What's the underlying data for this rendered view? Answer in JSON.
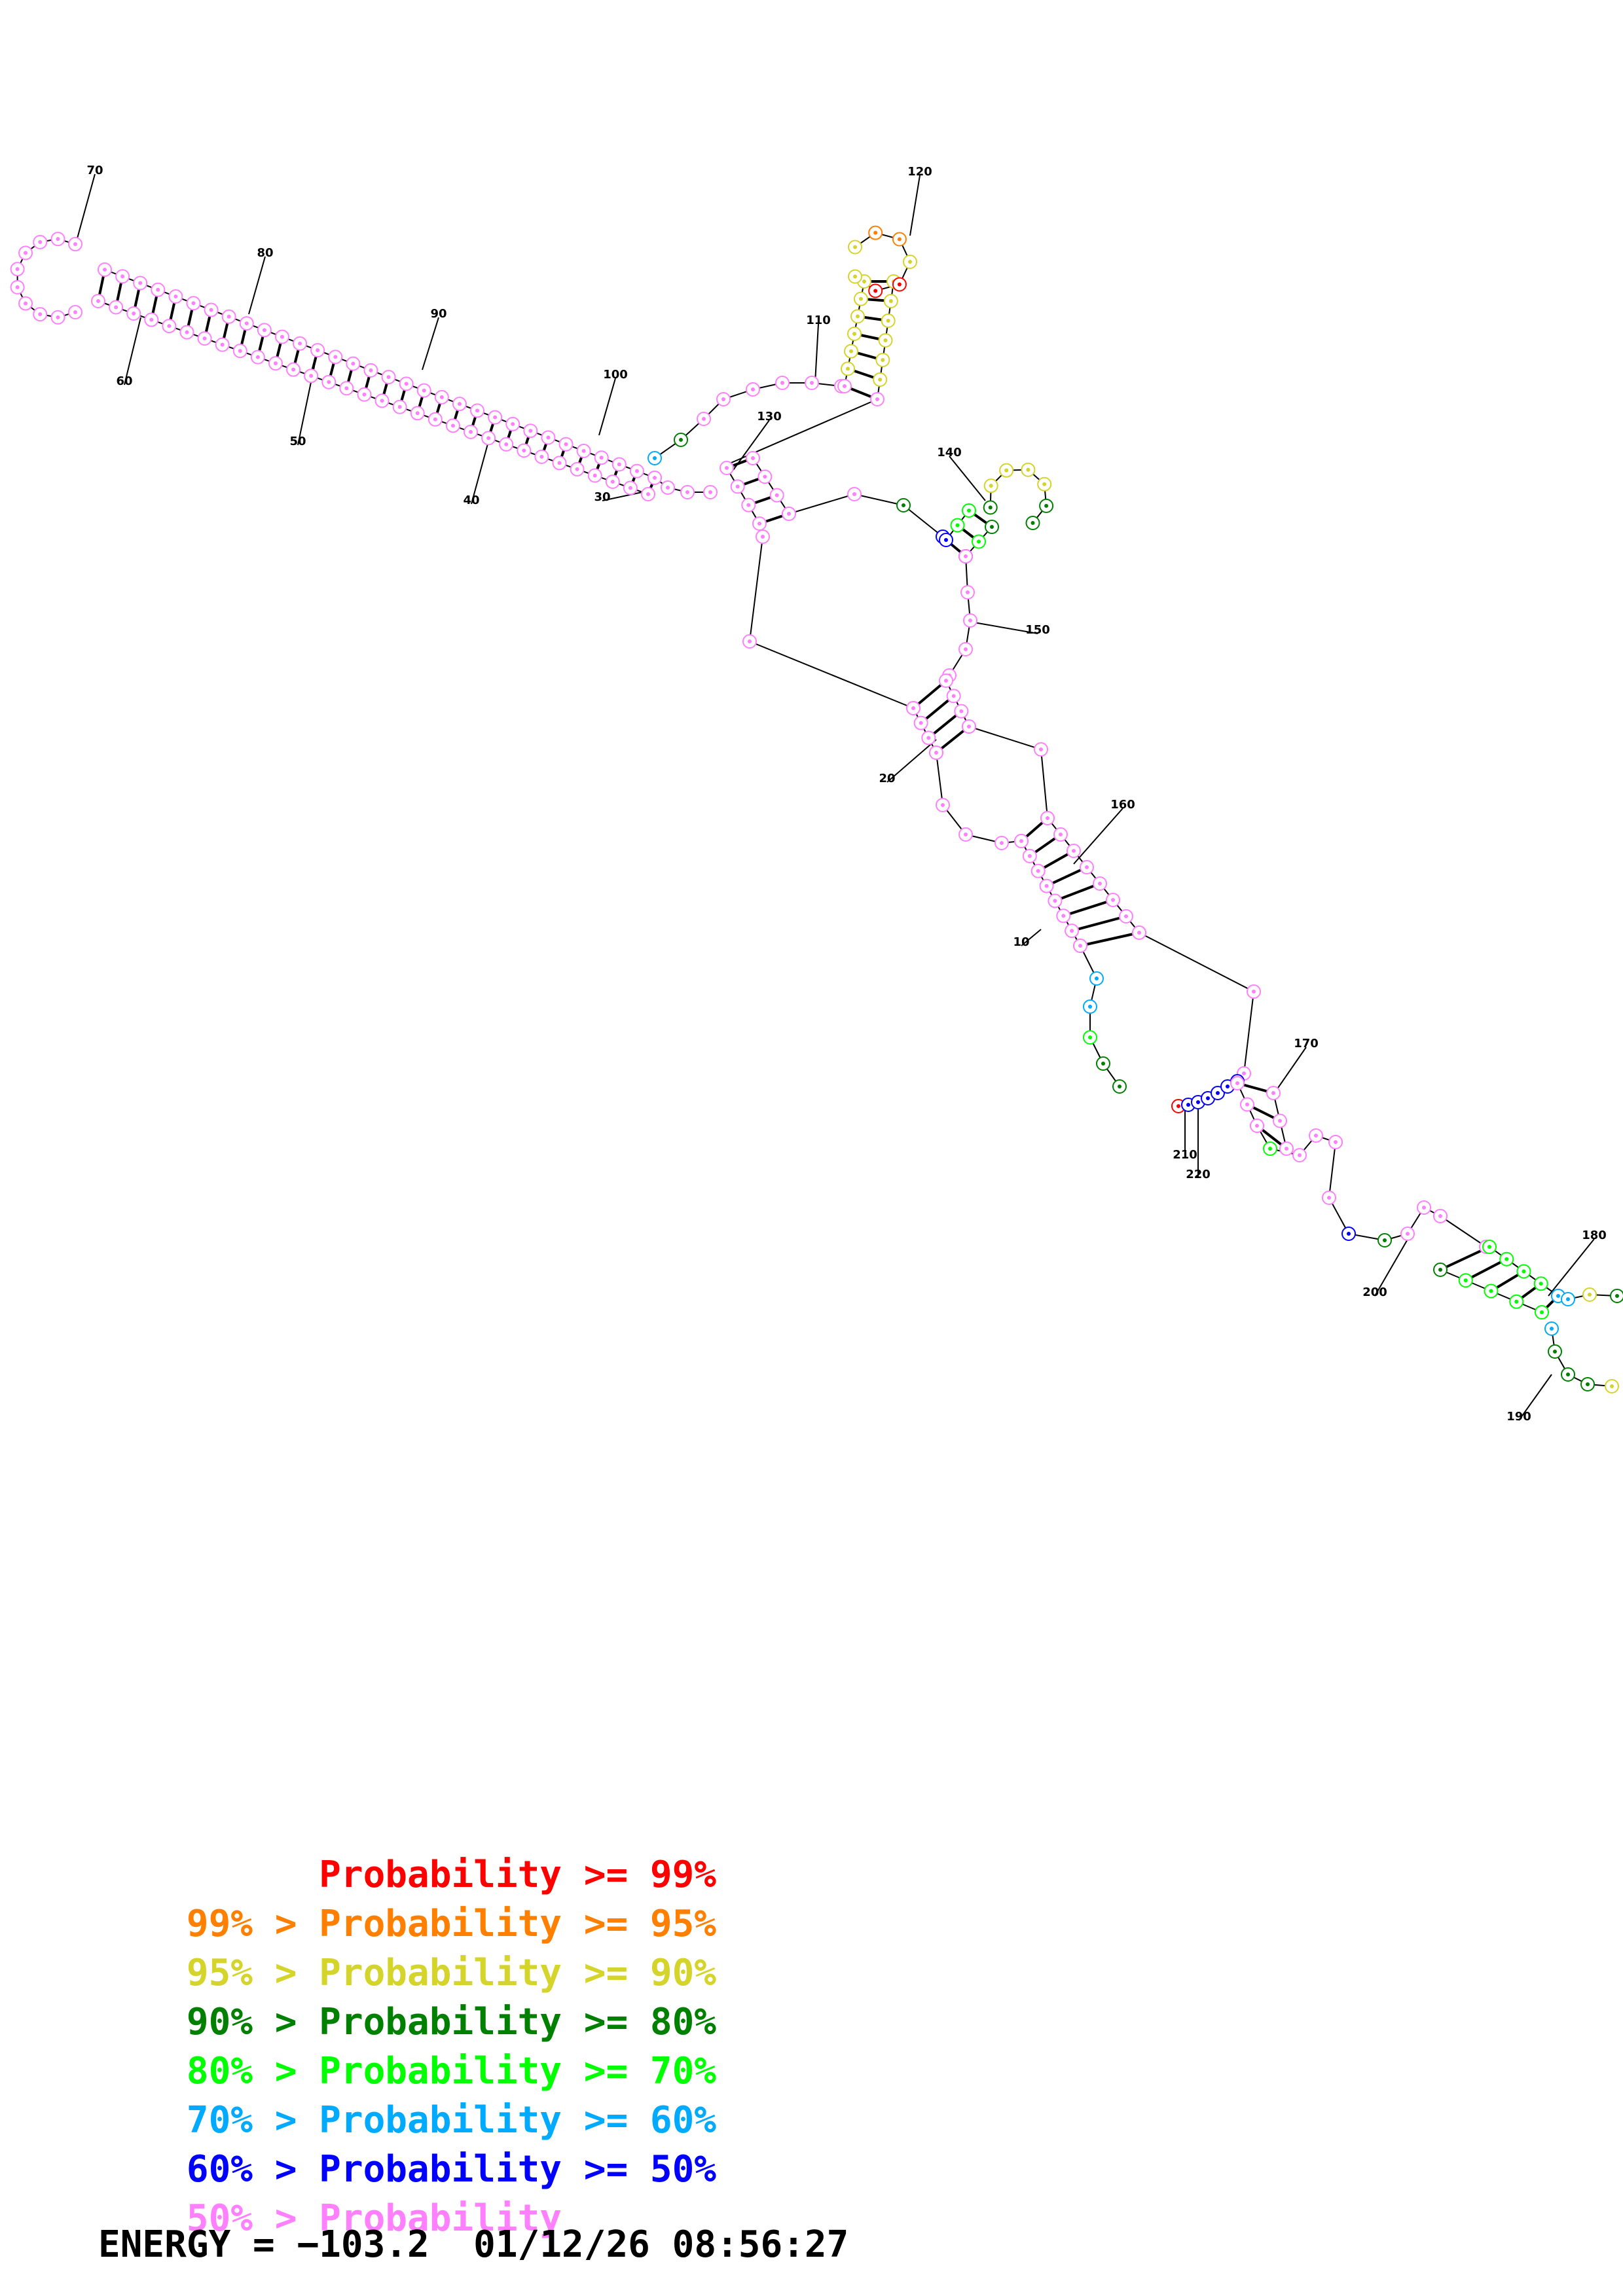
{
  "structure": {
    "position_labels": [
      "10",
      "20",
      "30",
      "40",
      "50",
      "60",
      "70",
      "80",
      "90",
      "100",
      "110",
      "120",
      "130",
      "140",
      "150",
      "160",
      "170",
      "180",
      "190",
      "200",
      "210",
      "220"
    ]
  },
  "legend": {
    "colors": [
      "#ff0000",
      "#ff8000",
      "#d4d42a",
      "#008000",
      "#00ff00",
      "#00aaff",
      "#0000ff",
      "#ff80ff"
    ],
    "rows": [
      {
        "prefix": "",
        "text": "Probability >= 99%"
      },
      {
        "prefix": "99% > ",
        "text": "Probability >= 95%"
      },
      {
        "prefix": "95% > ",
        "text": "Probability >= 90%"
      },
      {
        "prefix": "90% > ",
        "text": "Probability >= 80%"
      },
      {
        "prefix": "80% > ",
        "text": "Probability >= 70%"
      },
      {
        "prefix": "70% > ",
        "text": "Probability >= 60%"
      },
      {
        "prefix": "60% > ",
        "text": "Probability >= 50%"
      },
      {
        "prefix": "50% > ",
        "text": "Probability"
      }
    ]
  },
  "footer": {
    "energy_label": "ENERGY = ",
    "energy_value": "−103.2",
    "date": "01/12/26",
    "time": "08:56:27"
  }
}
